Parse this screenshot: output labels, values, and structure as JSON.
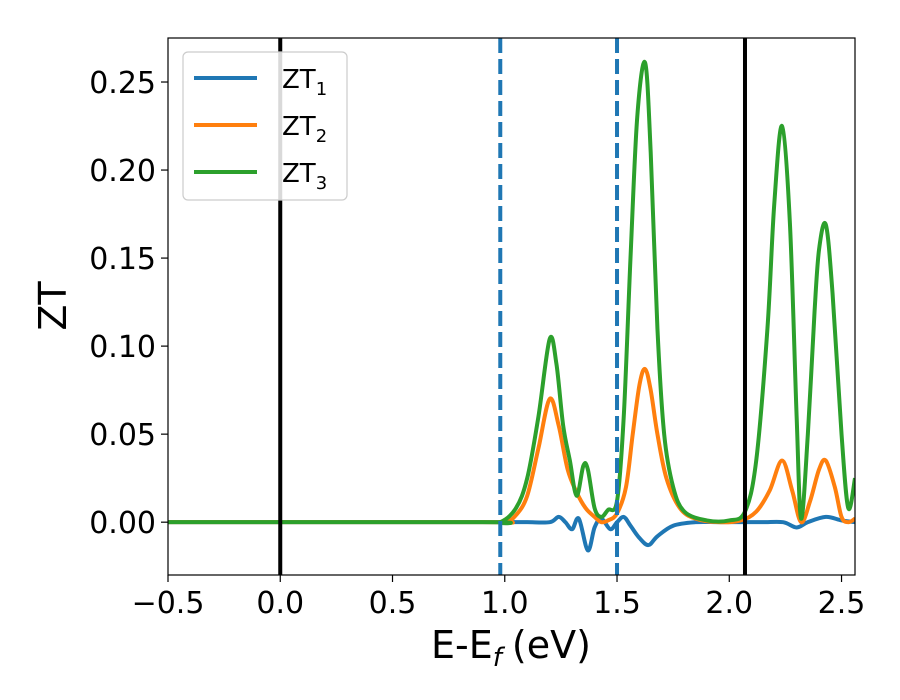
{
  "chart_data": {
    "type": "line",
    "title": "",
    "xlabel": "E-E",
    "xlabel_sub": "f",
    "xlabel_unit": "(eV)",
    "ylabel": "ZT",
    "xlim": [
      -0.5,
      2.56
    ],
    "ylim": [
      -0.03,
      0.275
    ],
    "xticks": [
      -0.5,
      0.0,
      0.5,
      1.0,
      1.5,
      2.0,
      2.5
    ],
    "xtick_labels": [
      "−0.5",
      "0.0",
      "0.5",
      "1.0",
      "1.5",
      "2.0",
      "2.5"
    ],
    "yticks": [
      0.0,
      0.05,
      0.1,
      0.15,
      0.2,
      0.25
    ],
    "ytick_labels": [
      "0.00",
      "0.05",
      "0.10",
      "0.15",
      "0.20",
      "0.25"
    ],
    "grid": false,
    "legend_position": "top-left",
    "vertical_lines": [
      {
        "x": 0.0,
        "color": "#000000",
        "style": "solid"
      },
      {
        "x": 0.98,
        "color": "#1f77b4",
        "style": "dashed"
      },
      {
        "x": 1.5,
        "color": "#1f77b4",
        "style": "dashed"
      },
      {
        "x": 2.07,
        "color": "#000000",
        "style": "solid"
      }
    ],
    "series": [
      {
        "name": "ZT",
        "sub": "1",
        "color": "#1f77b4",
        "x": [
          -0.5,
          0.9,
          1.0,
          1.1,
          1.2,
          1.24,
          1.27,
          1.3,
          1.33,
          1.37,
          1.4,
          1.43,
          1.47,
          1.5,
          1.53,
          1.56,
          1.6,
          1.64,
          1.68,
          1.75,
          1.85,
          1.95,
          2.05,
          2.15,
          2.24,
          2.3,
          2.35,
          2.43,
          2.5,
          2.56
        ],
        "y": [
          0.0,
          0.0,
          0.0,
          0.0,
          0.0,
          0.003,
          0.0,
          -0.004,
          0.002,
          -0.016,
          -0.003,
          0.002,
          -0.004,
          0.0,
          0.003,
          -0.002,
          -0.009,
          -0.013,
          -0.008,
          -0.002,
          0.0,
          0.0,
          0.0,
          0.0,
          0.0,
          -0.003,
          0.0,
          0.003,
          0.001,
          0.0
        ]
      },
      {
        "name": "ZT",
        "sub": "2",
        "color": "#ff7f0e",
        "x": [
          -0.5,
          0.9,
          1.0,
          1.05,
          1.1,
          1.15,
          1.2,
          1.24,
          1.28,
          1.32,
          1.36,
          1.4,
          1.43,
          1.46,
          1.5,
          1.54,
          1.57,
          1.6,
          1.625,
          1.65,
          1.68,
          1.72,
          1.78,
          1.85,
          1.95,
          2.05,
          2.12,
          2.18,
          2.235,
          2.28,
          2.32,
          2.36,
          2.4,
          2.43,
          2.47,
          2.5,
          2.53,
          2.56
        ],
        "y": [
          0.0,
          0.0,
          0.0,
          0.004,
          0.015,
          0.042,
          0.07,
          0.055,
          0.03,
          0.017,
          0.008,
          0.003,
          0.0,
          0.001,
          0.005,
          0.02,
          0.05,
          0.078,
          0.087,
          0.075,
          0.05,
          0.025,
          0.008,
          0.002,
          0.0,
          0.001,
          0.006,
          0.018,
          0.035,
          0.018,
          0.0,
          0.012,
          0.03,
          0.035,
          0.02,
          0.003,
          0.0,
          0.002
        ]
      },
      {
        "name": "ZT",
        "sub": "3",
        "color": "#2ca02c",
        "x": [
          -0.5,
          0.9,
          0.98,
          1.05,
          1.1,
          1.15,
          1.2,
          1.23,
          1.26,
          1.29,
          1.32,
          1.35,
          1.37,
          1.4,
          1.43,
          1.46,
          1.5,
          1.53,
          1.56,
          1.59,
          1.625,
          1.65,
          1.68,
          1.71,
          1.75,
          1.8,
          1.9,
          2.0,
          2.07,
          2.12,
          2.17,
          2.2,
          2.235,
          2.27,
          2.3,
          2.32,
          2.35,
          2.38,
          2.4,
          2.43,
          2.46,
          2.5,
          2.53,
          2.56
        ],
        "y": [
          0.0,
          0.0,
          0.0,
          0.008,
          0.025,
          0.06,
          0.104,
          0.09,
          0.055,
          0.035,
          0.015,
          0.032,
          0.03,
          0.008,
          0.003,
          0.007,
          0.012,
          0.06,
          0.15,
          0.23,
          0.261,
          0.21,
          0.11,
          0.05,
          0.02,
          0.006,
          0.001,
          0.001,
          0.006,
          0.035,
          0.11,
          0.18,
          0.225,
          0.17,
          0.06,
          0.002,
          0.05,
          0.12,
          0.155,
          0.169,
          0.13,
          0.05,
          0.008,
          0.025
        ]
      }
    ]
  }
}
